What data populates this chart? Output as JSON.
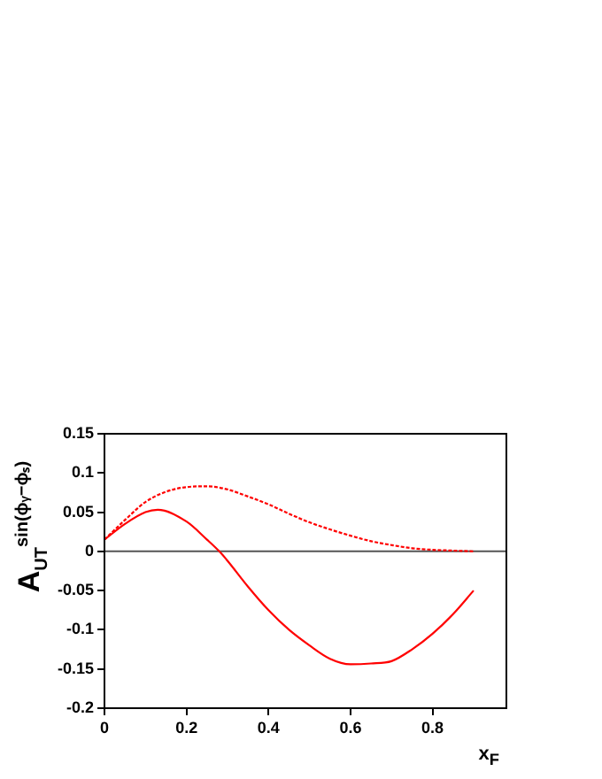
{
  "chart_data": {
    "type": "line",
    "xlabel": "x$_{F}$",
    "ylabel": "A$_{UT}$$^{sin(ϕᵧ−ϕₛ)}$",
    "xlim": [
      0,
      0.98
    ],
    "xticks": [
      0,
      0.2,
      0.4,
      0.6,
      0.8
    ],
    "ylim": [
      -0.2,
      0.15
    ],
    "yticks": [
      -0.2,
      -0.15,
      -0.1,
      -0.05,
      0,
      0.05,
      0.1,
      0.15
    ],
    "grid": false,
    "legend": false,
    "marker": "none",
    "ref_lines": [
      {
        "axis": "y",
        "value": 0,
        "color": "#555555"
      }
    ],
    "series": [
      {
        "color": "#ff0000",
        "line_style": "solid",
        "x": [
          0,
          0.05,
          0.1,
          0.13,
          0.2,
          0.25,
          0.28,
          0.3,
          0.35,
          0.4,
          0.45,
          0.5,
          0.55,
          0.6,
          0.65,
          0.7,
          0.75,
          0.8,
          0.85,
          0.9
        ],
        "values": [
          0.015,
          0.035,
          0.05,
          0.053,
          0.038,
          0.015,
          0,
          -0.012,
          -0.045,
          -0.075,
          -0.1,
          -0.12,
          -0.137,
          -0.144,
          -0.143,
          -0.14,
          -0.125,
          -0.105,
          -0.08,
          -0.05
        ]
      },
      {
        "color": "#ff0000",
        "line_style": "dashed",
        "x": [
          0,
          0.05,
          0.1,
          0.15,
          0.2,
          0.25,
          0.3,
          0.35,
          0.4,
          0.45,
          0.5,
          0.55,
          0.6,
          0.65,
          0.7,
          0.75,
          0.8,
          0.85,
          0.9
        ],
        "values": [
          0.015,
          0.04,
          0.063,
          0.076,
          0.082,
          0.083,
          0.079,
          0.07,
          0.06,
          0.048,
          0.037,
          0.028,
          0.02,
          0.013,
          0.008,
          0.004,
          0.002,
          0.001,
          0
        ]
      }
    ]
  }
}
